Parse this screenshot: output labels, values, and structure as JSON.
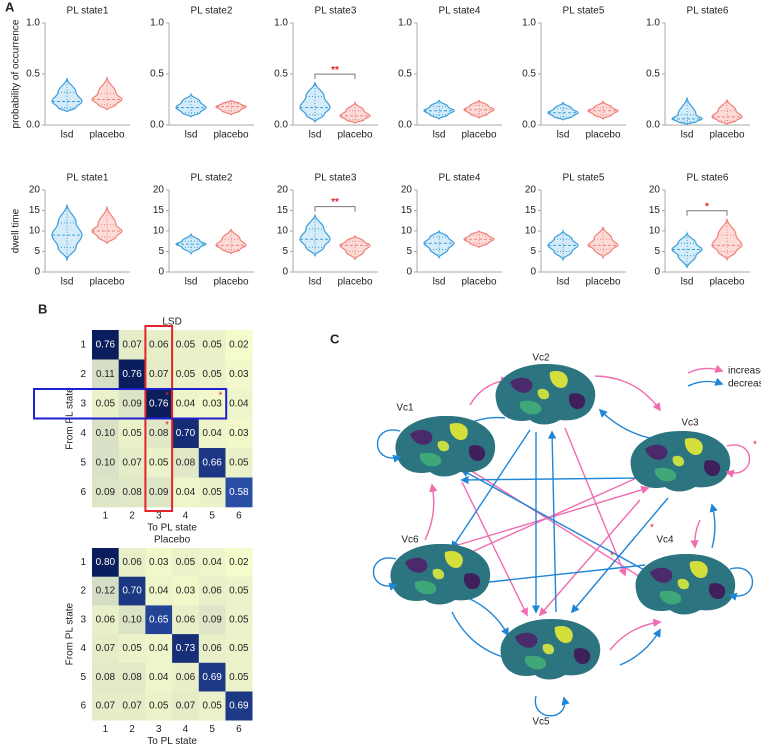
{
  "panel_labels": [
    "A",
    "B",
    "C"
  ],
  "chart_data": [
    {
      "type": "violin",
      "title": "PL state1",
      "ylabel": "probability of occurrence",
      "categories": [
        "lsd",
        "placebo"
      ],
      "ylim": [
        0,
        1
      ],
      "yticks": [
        {
          "value": 0,
          "label": "0.0"
        },
        {
          "value": 0.5,
          "label": "0.5"
        },
        {
          "value": 1,
          "label": "1.0"
        }
      ],
      "groups": [
        {
          "color": "#3a9fdc",
          "fill": "#d5ebf8",
          "min": 0.13,
          "q1": 0.17,
          "median": 0.23,
          "q3": 0.32,
          "max": 0.46
        },
        {
          "color": "#f0817b",
          "fill": "#fcdcd8",
          "min": 0.15,
          "q1": 0.2,
          "median": 0.25,
          "q3": 0.31,
          "max": 0.47
        }
      ]
    },
    {
      "type": "violin",
      "title": "PL state2",
      "categories": [
        "lsd",
        "placebo"
      ],
      "ylim": [
        0,
        1
      ],
      "yticks": [
        {
          "value": 0,
          "label": "0.0"
        },
        {
          "value": 0.5,
          "label": "0.5"
        },
        {
          "value": 1,
          "label": "1.0"
        }
      ],
      "groups": [
        {
          "color": "#3a9fdc",
          "fill": "#d5ebf8",
          "min": 0.08,
          "q1": 0.12,
          "median": 0.17,
          "q3": 0.23,
          "max": 0.3
        },
        {
          "color": "#f0817b",
          "fill": "#fcdcd8",
          "min": 0.1,
          "q1": 0.14,
          "median": 0.18,
          "q3": 0.21,
          "max": 0.24
        }
      ]
    },
    {
      "type": "violin",
      "title": "PL state3",
      "categories": [
        "lsd",
        "placebo"
      ],
      "ylim": [
        0,
        1
      ],
      "yticks": [
        {
          "value": 0,
          "label": "0.0"
        },
        {
          "value": 0.5,
          "label": "0.5"
        },
        {
          "value": 1,
          "label": "1.0"
        }
      ],
      "significance": "**",
      "groups": [
        {
          "color": "#3a9fdc",
          "fill": "#d5ebf8",
          "min": 0.03,
          "q1": 0.1,
          "median": 0.17,
          "q3": 0.28,
          "max": 0.42
        },
        {
          "color": "#f0817b",
          "fill": "#fcdcd8",
          "min": 0.02,
          "q1": 0.05,
          "median": 0.09,
          "q3": 0.14,
          "max": 0.22
        }
      ]
    },
    {
      "type": "violin",
      "title": "PL state4",
      "categories": [
        "lsd",
        "placebo"
      ],
      "ylim": [
        0,
        1
      ],
      "yticks": [
        {
          "value": 0,
          "label": "0.0"
        },
        {
          "value": 0.5,
          "label": "0.5"
        },
        {
          "value": 1,
          "label": "1.0"
        }
      ],
      "groups": [
        {
          "color": "#3a9fdc",
          "fill": "#d5ebf8",
          "min": 0.06,
          "q1": 0.1,
          "median": 0.14,
          "q3": 0.18,
          "max": 0.24
        },
        {
          "color": "#f0817b",
          "fill": "#fcdcd8",
          "min": 0.07,
          "q1": 0.11,
          "median": 0.15,
          "q3": 0.19,
          "max": 0.24
        }
      ]
    },
    {
      "type": "violin",
      "title": "PL state5",
      "categories": [
        "lsd",
        "placebo"
      ],
      "ylim": [
        0,
        1
      ],
      "yticks": [
        {
          "value": 0,
          "label": "0.0"
        },
        {
          "value": 0.5,
          "label": "0.5"
        },
        {
          "value": 1,
          "label": "1.0"
        }
      ],
      "groups": [
        {
          "color": "#3a9fdc",
          "fill": "#d5ebf8",
          "min": 0.05,
          "q1": 0.08,
          "median": 0.12,
          "q3": 0.16,
          "max": 0.22
        },
        {
          "color": "#f0817b",
          "fill": "#fcdcd8",
          "min": 0.06,
          "q1": 0.1,
          "median": 0.14,
          "q3": 0.17,
          "max": 0.23
        }
      ]
    },
    {
      "type": "violin",
      "title": "PL state6",
      "categories": [
        "lsd",
        "placebo"
      ],
      "ylim": [
        0,
        1
      ],
      "yticks": [
        {
          "value": 0,
          "label": "0.0"
        },
        {
          "value": 0.5,
          "label": "0.5"
        },
        {
          "value": 1,
          "label": "1.0"
        }
      ],
      "groups": [
        {
          "color": "#3a9fdc",
          "fill": "#d5ebf8",
          "min": 0.01,
          "q1": 0.03,
          "median": 0.06,
          "q3": 0.1,
          "max": 0.27
        },
        {
          "color": "#f0817b",
          "fill": "#fcdcd8",
          "min": 0.01,
          "q1": 0.04,
          "median": 0.08,
          "q3": 0.14,
          "max": 0.25
        }
      ]
    },
    {
      "type": "violin",
      "title": "PL state1",
      "ylabel": "dwell time",
      "categories": [
        "lsd",
        "placebo"
      ],
      "ylim": [
        0,
        20
      ],
      "yticks": [
        0,
        5,
        10,
        15,
        20
      ],
      "groups": [
        {
          "color": "#3a9fdc",
          "fill": "#d5ebf8",
          "min": 3,
          "q1": 6,
          "median": 9,
          "q3": 12,
          "max": 16.5
        },
        {
          "color": "#f0817b",
          "fill": "#fcdcd8",
          "min": 7,
          "q1": 8.5,
          "median": 10,
          "q3": 11.5,
          "max": 16
        }
      ]
    },
    {
      "type": "violin",
      "title": "PL state2",
      "categories": [
        "lsd",
        "placebo"
      ],
      "ylim": [
        0,
        20
      ],
      "yticks": [
        0,
        5,
        10,
        15,
        20
      ],
      "groups": [
        {
          "color": "#3a9fdc",
          "fill": "#d5ebf8",
          "min": 4.5,
          "q1": 6,
          "median": 6.8,
          "q3": 7.5,
          "max": 9.2
        },
        {
          "color": "#f0817b",
          "fill": "#fcdcd8",
          "min": 4.5,
          "q1": 5.5,
          "median": 6.5,
          "q3": 8,
          "max": 10.5
        }
      ]
    },
    {
      "type": "violin",
      "title": "PL state3",
      "categories": [
        "lsd",
        "placebo"
      ],
      "ylim": [
        0,
        20
      ],
      "yticks": [
        0,
        5,
        10,
        15,
        20
      ],
      "significance": "**",
      "groups": [
        {
          "color": "#3a9fdc",
          "fill": "#d5ebf8",
          "min": 4,
          "q1": 6,
          "median": 8,
          "q3": 10.5,
          "max": 14
        },
        {
          "color": "#f0817b",
          "fill": "#fcdcd8",
          "min": 3,
          "q1": 5,
          "median": 6.5,
          "q3": 7.5,
          "max": 8.8
        }
      ]
    },
    {
      "type": "violin",
      "title": "PL state4",
      "categories": [
        "lsd",
        "placebo"
      ],
      "ylim": [
        0,
        20
      ],
      "yticks": [
        0,
        5,
        10,
        15,
        20
      ],
      "groups": [
        {
          "color": "#3a9fdc",
          "fill": "#d5ebf8",
          "min": 3.5,
          "q1": 5.5,
          "median": 7,
          "q3": 8.5,
          "max": 10
        },
        {
          "color": "#f0817b",
          "fill": "#fcdcd8",
          "min": 6,
          "q1": 7,
          "median": 8,
          "q3": 9,
          "max": 10
        }
      ]
    },
    {
      "type": "violin",
      "title": "PL state5",
      "categories": [
        "lsd",
        "placebo"
      ],
      "ylim": [
        0,
        20
      ],
      "yticks": [
        0,
        5,
        10,
        15,
        20
      ],
      "groups": [
        {
          "color": "#3a9fdc",
          "fill": "#d5ebf8",
          "min": 3,
          "q1": 5,
          "median": 6.5,
          "q3": 8,
          "max": 10
        },
        {
          "color": "#f0817b",
          "fill": "#fcdcd8",
          "min": 3.5,
          "q1": 5.5,
          "median": 6.5,
          "q3": 8,
          "max": 11
        }
      ]
    },
    {
      "type": "violin",
      "title": "PL state6",
      "categories": [
        "lsd",
        "placebo"
      ],
      "ylim": [
        0,
        20
      ],
      "yticks": [
        0,
        5,
        10,
        15,
        20
      ],
      "significance": "*",
      "groups": [
        {
          "color": "#3a9fdc",
          "fill": "#d5ebf8",
          "min": 1,
          "q1": 4,
          "median": 5.5,
          "q3": 7,
          "max": 9.5
        },
        {
          "color": "#f0817b",
          "fill": "#fcdcd8",
          "min": 3,
          "q1": 5,
          "median": 6.5,
          "q3": 9,
          "max": 13
        }
      ]
    },
    {
      "type": "heatmap",
      "title": "LSD",
      "xlabel": "To PL state",
      "ylabel": "From PL state",
      "xcategories": [
        1,
        2,
        3,
        4,
        5,
        6
      ],
      "ycategories": [
        1,
        2,
        3,
        4,
        5,
        6
      ],
      "values": [
        [
          0.76,
          0.07,
          0.06,
          0.05,
          0.05,
          0.02
        ],
        [
          0.11,
          0.76,
          0.07,
          0.05,
          0.05,
          0.03
        ],
        [
          0.05,
          0.09,
          0.76,
          0.04,
          0.03,
          0.04
        ],
        [
          0.1,
          0.05,
          0.08,
          0.7,
          0.04,
          0.03
        ],
        [
          0.1,
          0.07,
          0.05,
          0.08,
          0.66,
          0.05
        ],
        [
          0.09,
          0.08,
          0.09,
          0.04,
          0.05,
          0.58
        ]
      ],
      "value_labels": [
        [
          "0.76",
          "0.07",
          "0.06",
          "0.05",
          "0.05",
          "0.02"
        ],
        [
          "0.11",
          "0.76",
          "0.07",
          "0.05",
          "0.05",
          "0.03"
        ],
        [
          "0.05",
          "0.09",
          "0.76",
          "0.04",
          "0.03",
          "0.04"
        ],
        [
          "0.10",
          "0.05",
          "0.08",
          "0.70",
          "0.04",
          "0.03"
        ],
        [
          "0.10",
          "0.07",
          "0.05",
          "0.08",
          "0.66",
          "0.05"
        ],
        [
          "0.09",
          "0.08",
          "0.09",
          "0.04",
          "0.05",
          "0.58"
        ]
      ],
      "colors": [
        "#f6fbcb",
        "#2b4fa7",
        "#0a1d5c"
      ],
      "highlight": {
        "row": 2,
        "col": 2,
        "row_color": "#2020d0",
        "col_color": "#e0262b"
      },
      "stars": {
        "text": "*",
        "cells": [
          [
            2,
            2
          ],
          [
            2,
            4
          ],
          [
            3,
            2
          ]
        ]
      }
    },
    {
      "type": "heatmap",
      "title": "Placebo",
      "xlabel": "To PL state",
      "ylabel": "From PL state",
      "xcategories": [
        1,
        2,
        3,
        4,
        5,
        6
      ],
      "ycategories": [
        1,
        2,
        3,
        4,
        5,
        6
      ],
      "values": [
        [
          0.8,
          0.06,
          0.03,
          0.05,
          0.04,
          0.02
        ],
        [
          0.12,
          0.7,
          0.04,
          0.03,
          0.06,
          0.05
        ],
        [
          0.06,
          0.1,
          0.65,
          0.06,
          0.09,
          0.05
        ],
        [
          0.07,
          0.05,
          0.04,
          0.73,
          0.06,
          0.05
        ],
        [
          0.08,
          0.08,
          0.04,
          0.06,
          0.69,
          0.05
        ],
        [
          0.07,
          0.07,
          0.05,
          0.07,
          0.05,
          0.69
        ]
      ],
      "value_labels": [
        [
          "0.80",
          "0.06",
          "0.03",
          "0.05",
          "0.04",
          "0.02"
        ],
        [
          "0.12",
          "0.70",
          "0.04",
          "0.03",
          "0.06",
          "0.05"
        ],
        [
          "0.06",
          "0.10",
          "0.65",
          "0.06",
          "0.09",
          "0.05"
        ],
        [
          "0.07",
          "0.05",
          "0.04",
          "0.73",
          "0.06",
          "0.05"
        ],
        [
          "0.08",
          "0.08",
          "0.04",
          "0.06",
          "0.69",
          "0.05"
        ],
        [
          "0.07",
          "0.07",
          "0.05",
          "0.07",
          "0.05",
          "0.69"
        ]
      ],
      "colors": [
        "#f6fbcb",
        "#2b4fa7",
        "#0a1d5c"
      ]
    }
  ],
  "diagram": {
    "nodes": [
      "Vc1",
      "Vc2",
      "Vc3",
      "Vc4",
      "Vc5",
      "Vc6"
    ],
    "legend": [
      {
        "label": "increase",
        "color": "#f06bb0"
      },
      {
        "label": "decrease",
        "color": "#1f86d8"
      }
    ],
    "stars": [
      "*",
      "*",
      "*"
    ]
  }
}
